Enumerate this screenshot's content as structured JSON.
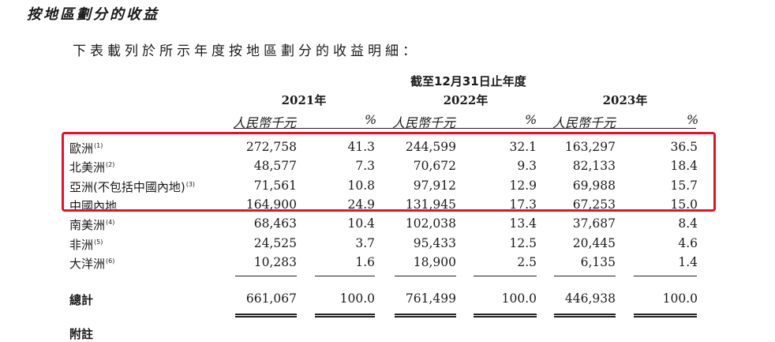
{
  "section_title": "按地區劃分的收益",
  "intro_text": "下表載列於所示年度按地區劃分的收益明細：",
  "period_label": "截至12月31日止年度",
  "years": [
    "2021年",
    "2022年",
    "2023年"
  ],
  "col_headers": {
    "amount": "人民幣千元",
    "percent": "%"
  },
  "rows": [
    {
      "region": "歐洲",
      "note": "(1)",
      "values": [
        "272,758",
        "41.3",
        "244,599",
        "32.1",
        "163,297",
        "36.5"
      ]
    },
    {
      "region": "北美洲",
      "note": "(2)",
      "values": [
        "48,577",
        "7.3",
        "70,672",
        "9.3",
        "82,133",
        "18.4"
      ]
    },
    {
      "region": "亞洲(不包括中國內地)",
      "note": "(3)",
      "values": [
        "71,561",
        "10.8",
        "97,912",
        "12.9",
        "69,988",
        "15.7"
      ]
    },
    {
      "region": "中國內地",
      "note": "",
      "values": [
        "164,900",
        "24.9",
        "131,945",
        "17.3",
        "67,253",
        "15.0"
      ]
    },
    {
      "region": "南美洲",
      "note": "(4)",
      "values": [
        "68,463",
        "10.4",
        "102,038",
        "13.4",
        "37,687",
        "8.4"
      ]
    },
    {
      "region": "非洲",
      "note": "(5)",
      "values": [
        "24,525",
        "3.7",
        "95,433",
        "12.5",
        "20,445",
        "4.6"
      ]
    },
    {
      "region": "大洋洲",
      "note": "(6)",
      "values": [
        "10,283",
        "1.6",
        "18,900",
        "2.5",
        "6,135",
        "1.4"
      ]
    }
  ],
  "total": {
    "label": "總計",
    "values": [
      "661,067",
      "100.0",
      "761,499",
      "100.0",
      "446,938",
      "100.0"
    ]
  },
  "footnote_label": "附註",
  "highlight_color": "#e3122a"
}
